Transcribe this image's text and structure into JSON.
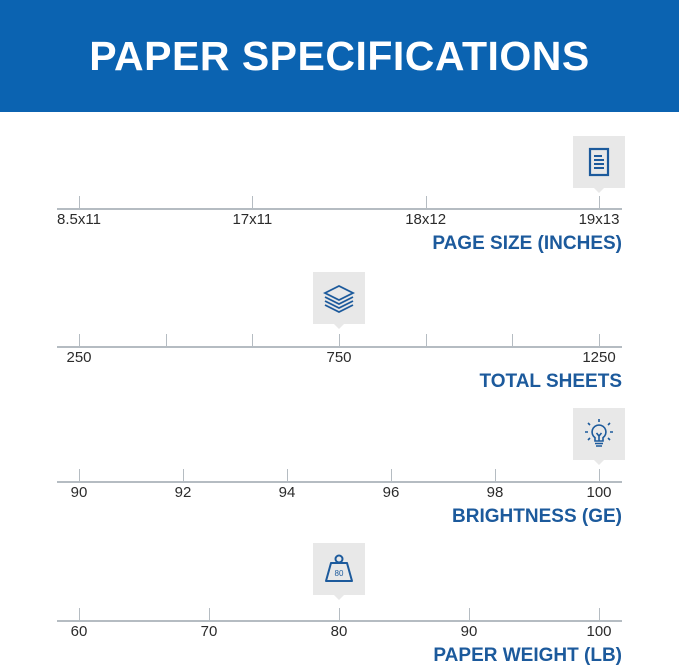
{
  "header": {
    "title": "PAPER SPECIFICATIONS",
    "background": "#0b63b1"
  },
  "accent_color": "#1c5a9c",
  "scales": [
    {
      "id": "page-size",
      "title": "PAGE SIZE (INCHES)",
      "ticks": [
        "8.5x11",
        "17x11",
        "18x12",
        "19x13"
      ],
      "labeled": [
        true,
        true,
        true,
        true
      ],
      "selected": "19x13",
      "icon": "document-icon"
    },
    {
      "id": "total-sheets",
      "title": "TOTAL SHEETS",
      "ticks": [
        "250",
        "",
        "",
        "750",
        "",
        "",
        "1250"
      ],
      "labeled": [
        true,
        false,
        false,
        true,
        false,
        false,
        true
      ],
      "selected": "750",
      "icon": "paper-stack-icon"
    },
    {
      "id": "brightness",
      "title": "BRIGHTNESS (GE)",
      "ticks": [
        "90",
        "92",
        "94",
        "96",
        "98",
        "100"
      ],
      "labeled": [
        true,
        true,
        true,
        true,
        true,
        true
      ],
      "selected": "100",
      "icon": "lightbulb-icon"
    },
    {
      "id": "paper-weight",
      "title": "PAPER WEIGHT (LB)",
      "ticks": [
        "60",
        "70",
        "80",
        "90",
        "100"
      ],
      "labeled": [
        true,
        true,
        true,
        true,
        true
      ],
      "selected": "80",
      "icon": "weight-icon",
      "icon_text": "80"
    }
  ]
}
